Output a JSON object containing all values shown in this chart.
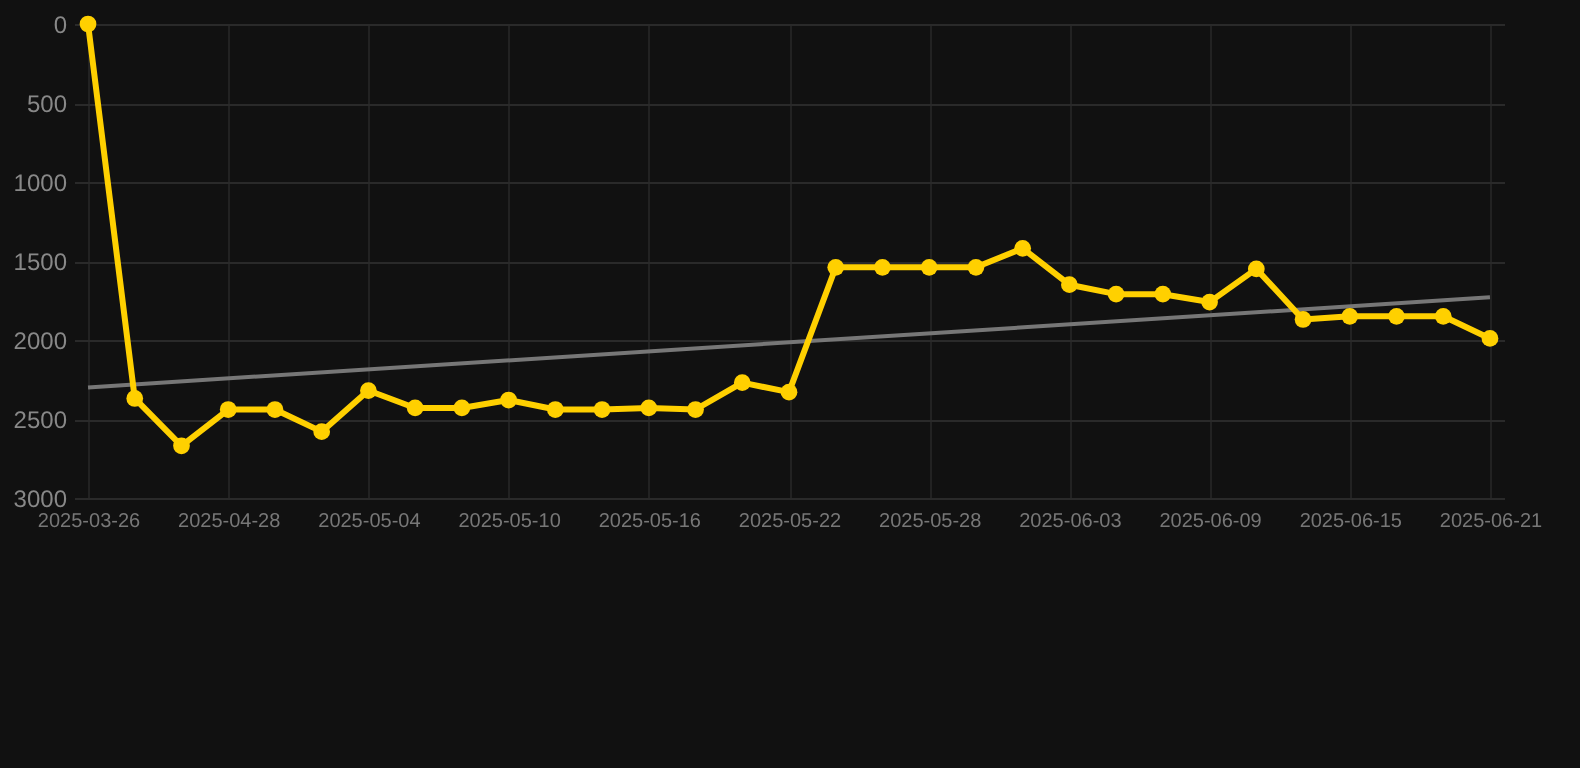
{
  "chart_data": {
    "type": "line",
    "categories": [
      "2025-03-26",
      null,
      null,
      "2025-04-28",
      null,
      null,
      "2025-05-04",
      null,
      null,
      "2025-05-10",
      null,
      null,
      "2025-05-16",
      null,
      null,
      "2025-05-22",
      null,
      null,
      "2025-05-28",
      null,
      null,
      "2025-06-03",
      null,
      null,
      "2025-06-09",
      null,
      null,
      "2025-06-15",
      null,
      null,
      "2025-06-21"
    ],
    "series": [
      {
        "color": "#ffd000",
        "marker": "circle",
        "values": [
          0,
          2370,
          2670,
          2440,
          2440,
          2580,
          2320,
          2430,
          2430,
          2380,
          2440,
          2440,
          2430,
          2440,
          2270,
          2330,
          1540,
          1540,
          1540,
          1540,
          1420,
          1650,
          1710,
          1710,
          1760,
          1550,
          1870,
          1850,
          1850,
          1850,
          1990
        ]
      },
      {
        "color": "#777777",
        "marker": "none",
        "values": [
          2300,
          null,
          null,
          null,
          null,
          null,
          null,
          null,
          null,
          null,
          null,
          null,
          null,
          null,
          null,
          null,
          null,
          null,
          null,
          null,
          null,
          null,
          null,
          null,
          null,
          null,
          null,
          null,
          null,
          null,
          1730
        ]
      }
    ],
    "ylim": [
      3000,
      0
    ],
    "yticks": [
      0,
      500,
      1000,
      1500,
      2000,
      2500,
      3000
    ],
    "grid": true
  }
}
